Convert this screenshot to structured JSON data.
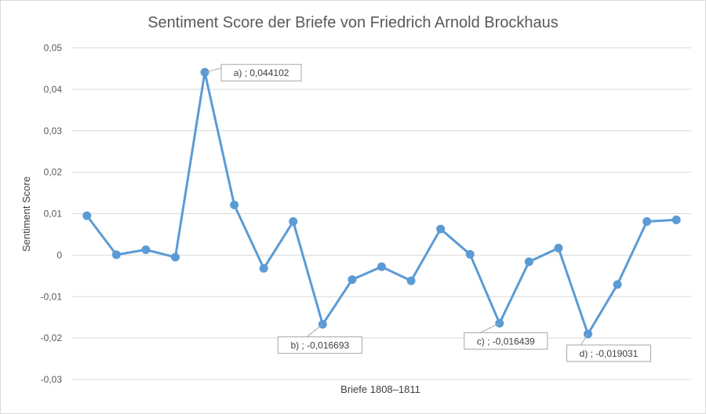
{
  "chart_data": {
    "type": "line",
    "title": "Sentiment Score der Briefe von Friedrich Arnold Brockhaus",
    "xlabel": "Briefe 1808–1811",
    "ylabel": "Sentiment Score",
    "ylim": [
      -0.03,
      0.05
    ],
    "yticks": [
      0.05,
      0.04,
      0.03,
      0.02,
      0.01,
      0,
      -0.01,
      -0.02,
      -0.03
    ],
    "ytick_labels": [
      "0,05",
      "0,04",
      "0,03",
      "0,02",
      "0,01",
      "0",
      "-0,01",
      "-0,02",
      "-0,03"
    ],
    "grid": true,
    "series": [
      {
        "color": "#5b9bd5",
        "values": [
          0.0095,
          0.0001,
          0.0013,
          -0.0005,
          0.044102,
          0.0121,
          -0.0032,
          0.0081,
          -0.016693,
          -0.0059,
          -0.0028,
          -0.0062,
          0.0063,
          0.0002,
          -0.016439,
          -0.0016,
          0.0017,
          -0.019031,
          -0.0071,
          0.0081,
          0.0085
        ]
      }
    ],
    "annotations": [
      {
        "index": 4,
        "text": "a) ; 0,044102"
      },
      {
        "index": 8,
        "text": "b) ; -0,016693"
      },
      {
        "index": 14,
        "text": "c) ; -0,016439"
      },
      {
        "index": 17,
        "text": "d) ; -0,019031"
      }
    ]
  }
}
